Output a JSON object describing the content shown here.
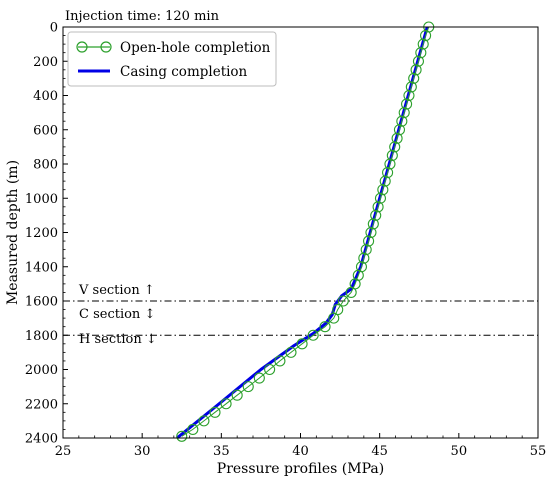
{
  "chart_data": {
    "type": "line",
    "annotation_title": "Injection time: 120 min",
    "xlabel": "Pressure profiles (MPa)",
    "ylabel": "Measured depth (m)",
    "xlim": [
      25,
      55
    ],
    "ylim": [
      2400,
      0
    ],
    "y_inverted": true,
    "x_ticks": [
      25,
      30,
      35,
      40,
      45,
      50,
      55
    ],
    "y_ticks": [
      0,
      200,
      400,
      600,
      800,
      1000,
      1200,
      1400,
      1600,
      1800,
      2000,
      2200,
      2400
    ],
    "grid": false,
    "legend_position": "top-left",
    "series": [
      {
        "name": "Open-hole completion",
        "color": "#2ca02c",
        "marker": "open-circle",
        "points": [
          [
            48.1,
            0
          ],
          [
            47.9,
            50
          ],
          [
            47.75,
            100
          ],
          [
            47.6,
            150
          ],
          [
            47.45,
            200
          ],
          [
            47.3,
            250
          ],
          [
            47.15,
            300
          ],
          [
            47.0,
            350
          ],
          [
            46.85,
            400
          ],
          [
            46.7,
            450
          ],
          [
            46.55,
            500
          ],
          [
            46.4,
            550
          ],
          [
            46.25,
            600
          ],
          [
            46.1,
            650
          ],
          [
            45.95,
            700
          ],
          [
            45.8,
            750
          ],
          [
            45.65,
            800
          ],
          [
            45.5,
            850
          ],
          [
            45.35,
            900
          ],
          [
            45.2,
            950
          ],
          [
            45.05,
            1000
          ],
          [
            44.9,
            1050
          ],
          [
            44.75,
            1100
          ],
          [
            44.6,
            1150
          ],
          [
            44.45,
            1200
          ],
          [
            44.3,
            1250
          ],
          [
            44.15,
            1300
          ],
          [
            44.0,
            1350
          ],
          [
            43.85,
            1400
          ],
          [
            43.65,
            1450
          ],
          [
            43.45,
            1500
          ],
          [
            43.2,
            1550
          ],
          [
            42.7,
            1600
          ],
          [
            42.35,
            1650
          ],
          [
            42.1,
            1700
          ],
          [
            41.55,
            1750
          ],
          [
            40.8,
            1800
          ],
          [
            40.1,
            1850
          ],
          [
            39.4,
            1900
          ],
          [
            38.7,
            1950
          ],
          [
            38.05,
            2000
          ],
          [
            37.4,
            2050
          ],
          [
            36.7,
            2100
          ],
          [
            36.0,
            2150
          ],
          [
            35.3,
            2200
          ],
          [
            34.6,
            2250
          ],
          [
            33.9,
            2300
          ],
          [
            33.2,
            2350
          ],
          [
            32.5,
            2390
          ]
        ]
      },
      {
        "name": "Casing completion",
        "color": "#0000e6",
        "marker": "none",
        "points": [
          [
            48.0,
            0
          ],
          [
            46.2,
            600
          ],
          [
            44.7,
            1100
          ],
          [
            43.8,
            1400
          ],
          [
            43.2,
            1530
          ],
          [
            42.6,
            1570
          ],
          [
            42.2,
            1620
          ],
          [
            42.0,
            1680
          ],
          [
            41.6,
            1730
          ],
          [
            40.8,
            1790
          ],
          [
            39.6,
            1860
          ],
          [
            37.5,
            2000
          ],
          [
            35.0,
            2190
          ],
          [
            32.6,
            2370
          ],
          [
            32.2,
            2400
          ]
        ]
      }
    ],
    "reference_lines": [
      {
        "y": 1600,
        "style": "dash-dot",
        "color": "#000000"
      },
      {
        "y": 1800,
        "style": "dash-dot",
        "color": "#000000"
      }
    ],
    "section_labels": [
      {
        "text": "V section ↑",
        "y": 1560
      },
      {
        "text": "C section ↕",
        "y": 1700
      },
      {
        "text": "H section ↓",
        "y": 1845
      }
    ]
  }
}
